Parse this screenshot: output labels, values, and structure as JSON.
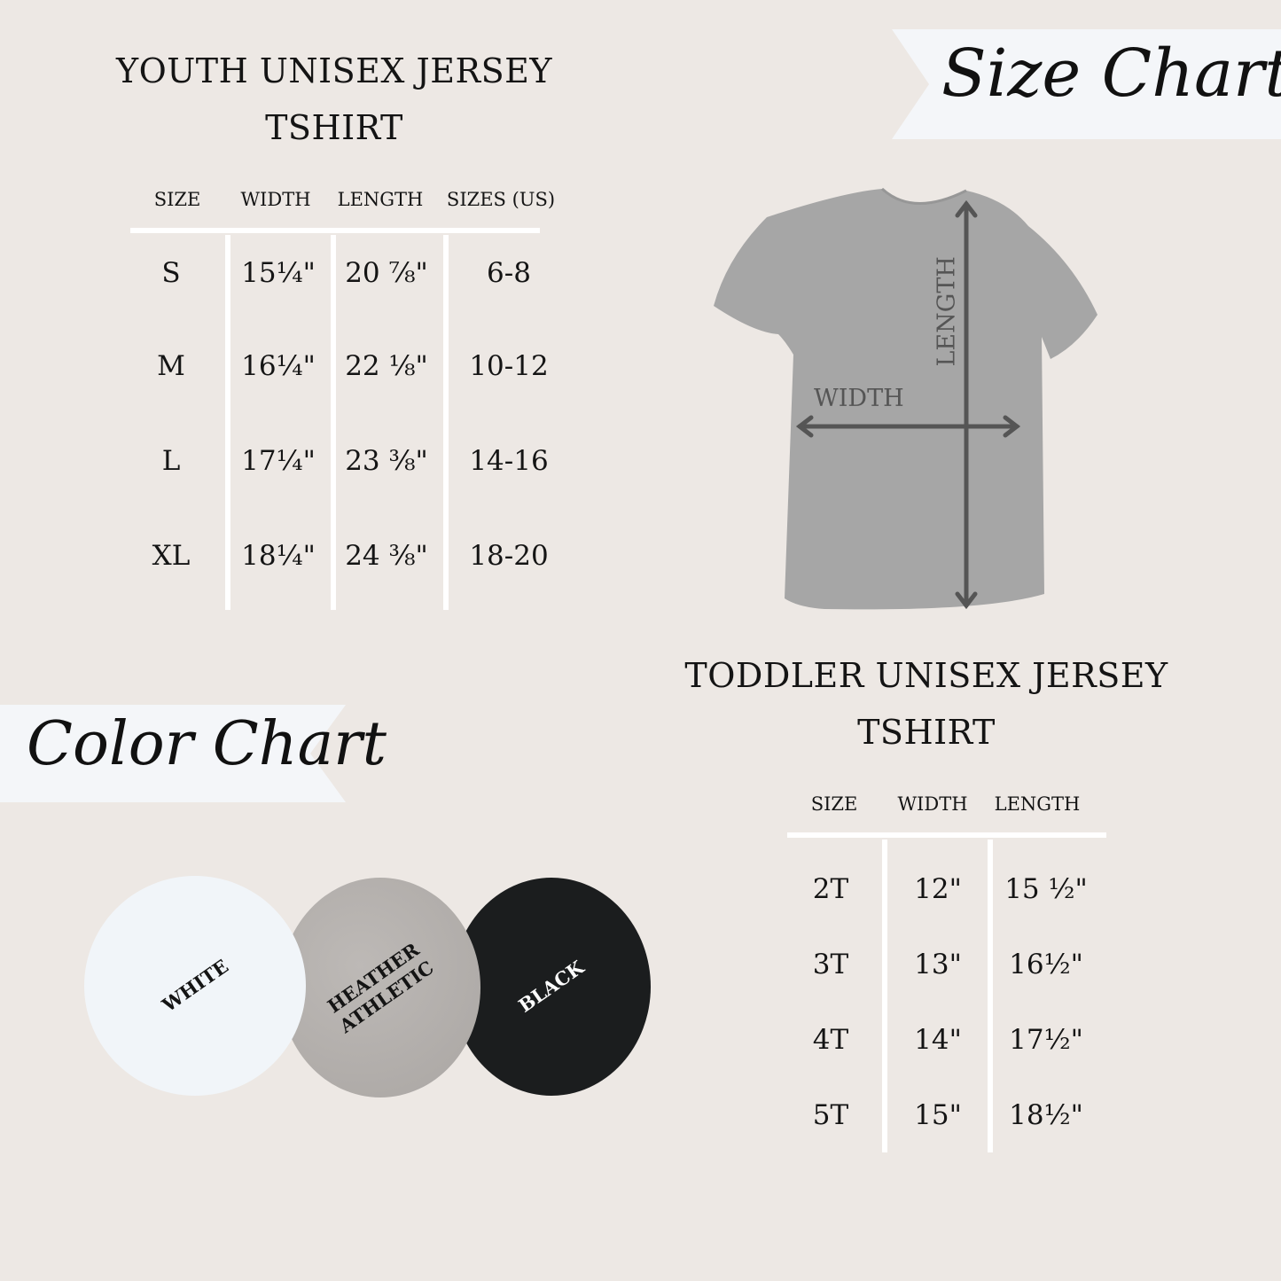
{
  "youth": {
    "title_line1": "YOUTH UNISEX JERSEY",
    "title_line2": "TSHIRT",
    "headers": [
      "SIZE",
      "WIDTH",
      "LENGTH",
      "SIZES (US)"
    ],
    "rows": [
      [
        "S",
        "15¼\"",
        "20 ⅞\"",
        "6-8"
      ],
      [
        "M",
        "16¼\"",
        "22 ⅛\"",
        "10-12"
      ],
      [
        "L",
        "17¼\"",
        "23 ⅜\"",
        "14-16"
      ],
      [
        "XL",
        "18¼\"",
        "24 ⅜\"",
        "18-20"
      ]
    ]
  },
  "size_chart_banner": "Size Chart",
  "diagram": {
    "length_label": "LENGTH",
    "width_label": "WIDTH",
    "shirt_color": "#a6a6a6",
    "arrow_color": "#555555"
  },
  "toddler": {
    "title_line1": "TODDLER UNISEX JERSEY",
    "title_line2": "TSHIRT",
    "headers": [
      "SIZE",
      "WIDTH",
      "LENGTH"
    ],
    "rows": [
      [
        "2T",
        "12\"",
        "15 ½\""
      ],
      [
        "3T",
        "13\"",
        "16½\""
      ],
      [
        "4T",
        "14\"",
        "17½\""
      ],
      [
        "5T",
        "15\"",
        "18½\""
      ]
    ]
  },
  "color_chart_banner": "Color Chart",
  "colors": [
    {
      "label": "WHITE",
      "hex": "#f1f5f9",
      "text": "#111111"
    },
    {
      "label": "HEATHER\nATHLETIC",
      "hex": "#b5b1ae",
      "text": "#111111"
    },
    {
      "label": "BLACK",
      "hex": "#1b1d1e",
      "text": "#ffffff"
    }
  ],
  "background": "#ede8e4"
}
